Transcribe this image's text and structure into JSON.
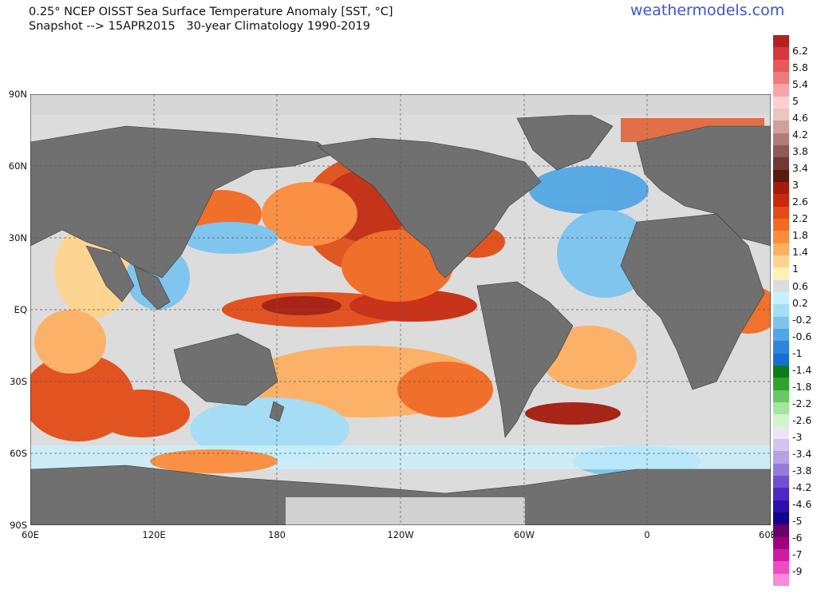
{
  "header": {
    "title_line1": "0.25° NCEP OISST Sea Surface Temperature Anomaly [SST, °C]",
    "title_line2": "Snapshot --> 15APR2015   30-year Climatology 1990-2019",
    "brand": "weathermodels.com"
  },
  "axes": {
    "lat_labels": [
      "90N",
      "60N",
      "30N",
      "EQ",
      "30S",
      "60S",
      "90S"
    ],
    "lon_labels": [
      "60E",
      "120E",
      "180",
      "120W",
      "60W",
      "0",
      "60E"
    ]
  },
  "colorbar": {
    "labels": [
      "6.2",
      "5.8",
      "5.4",
      "5",
      "4.6",
      "4.2",
      "3.8",
      "3.4",
      "3",
      "2.6",
      "2.2",
      "1.8",
      "1.4",
      "1",
      "0.6",
      "0.2",
      "-0.2",
      "-0.6",
      "-1",
      "-1.4",
      "-1.8",
      "-2.2",
      "-2.6",
      "-3",
      "-3.4",
      "-3.8",
      "-4.2",
      "-4.6",
      "-5",
      "-6",
      "-7",
      "-9"
    ],
    "colors": [
      "#b22222",
      "#d9383a",
      "#e8585a",
      "#f07a7c",
      "#f8a3a5",
      "#fdd0d0",
      "#ecc5c0",
      "#cfa19b",
      "#b07d77",
      "#8e5a54",
      "#6e3a36",
      "#5a1a10",
      "#a51c0c",
      "#c82a10",
      "#e24c18",
      "#f26a22",
      "#fb8c3c",
      "#fdb062",
      "#fed48e",
      "#fff0b4",
      "#dcdcdc",
      "#c8f1ff",
      "#a4def6",
      "#7cc4ee",
      "#52a6e4",
      "#2e86da",
      "#186fd2",
      "#0f7a1a",
      "#2fa32f",
      "#66c866",
      "#a4e6a0",
      "#cff5cc",
      "#ede4f7",
      "#d2c4ef",
      "#b6a0e6",
      "#957cdb",
      "#7250cf",
      "#4c2ac1",
      "#2a10ad",
      "#140090",
      "#6a006a",
      "#a0007e",
      "#d01aa0",
      "#ee4cc4",
      "#f88ad8"
    ]
  },
  "map": {
    "features": [
      "land-masses",
      "sea-ice",
      "graticule",
      "sst-anomaly-field"
    ]
  }
}
